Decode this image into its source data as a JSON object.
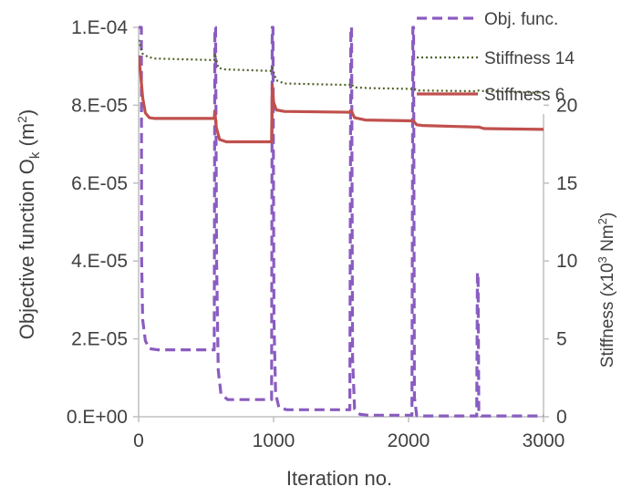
{
  "colors": {
    "objective": "#8a5cc0",
    "stiffness14": "#4f6228",
    "stiffness6": "#c0504d",
    "axis": "#bfbfbf",
    "text": "#404040"
  },
  "chart_data": {
    "type": "line",
    "title": "",
    "xlabel": "Iteration no.",
    "ylabel_left": "Objective function O",
    "ylabel_left_sub": "k",
    "ylabel_left_unit_open": " (m",
    "ylabel_left_unit_sup": "2",
    "ylabel_left_unit_close": ")",
    "ylabel_right": "Stiffness (x10",
    "ylabel_right_sup": "3",
    "ylabel_right_mid": " Nm",
    "ylabel_right_sup2": "2",
    "ylabel_right_close": ")",
    "xlim": [
      0,
      3000
    ],
    "ylim_left": [
      0,
      0.0001
    ],
    "ylim_right": [
      0,
      25
    ],
    "x_ticks": [
      0,
      1000,
      2000,
      3000
    ],
    "x_tick_labels": [
      "0",
      "1000",
      "2000",
      "3000"
    ],
    "y_left_ticks": [
      0,
      2e-05,
      4e-05,
      6e-05,
      8e-05,
      0.0001
    ],
    "y_left_tick_labels": [
      "0.E+00",
      "2.E-05",
      "4.E-05",
      "6.E-05",
      "8.E-05",
      "1.E-04"
    ],
    "y_right_ticks": [
      0,
      5,
      10,
      15,
      20
    ],
    "y_right_tick_labels": [
      "0",
      "5",
      "10",
      "15",
      "20"
    ],
    "grid": false,
    "legend_position": "top-right",
    "series": [
      {
        "name": "Obj. func.",
        "axis": "left",
        "style": "dashed",
        "points": [
          [
            0,
            0.0001
          ],
          [
            20,
            0.0001
          ],
          [
            22,
            4e-05
          ],
          [
            30,
            2.5e-05
          ],
          [
            50,
            1.95e-05
          ],
          [
            80,
            1.75e-05
          ],
          [
            140,
            1.72e-05
          ],
          [
            560,
            1.72e-05
          ],
          [
            565,
            0.0001
          ],
          [
            570,
            0.0001
          ],
          [
            578,
            4e-05
          ],
          [
            590,
            1.2e-05
          ],
          [
            610,
            5.8e-06
          ],
          [
            660,
            4.4e-06
          ],
          [
            985,
            4.4e-06
          ],
          [
            990,
            0.0001
          ],
          [
            995,
            0.0001
          ],
          [
            1003,
            2.5e-05
          ],
          [
            1015,
            6e-06
          ],
          [
            1040,
            2.3e-06
          ],
          [
            1100,
            1.8e-06
          ],
          [
            1565,
            1.8e-06
          ],
          [
            1572,
            0.0001
          ],
          [
            1578,
            0.0001
          ],
          [
            1585,
            1.5e-05
          ],
          [
            1600,
            2e-06
          ],
          [
            1640,
            6e-07
          ],
          [
            1700,
            4e-07
          ],
          [
            2025,
            4e-07
          ],
          [
            2032,
            0.0001
          ],
          [
            2037,
            0.0001
          ],
          [
            2043,
            5e-06
          ],
          [
            2060,
            3e-07
          ],
          [
            2100,
            2e-07
          ],
          [
            2505,
            2e-07
          ],
          [
            2510,
            3.7e-05
          ],
          [
            2515,
            3.7e-05
          ],
          [
            2520,
            1e-06
          ],
          [
            2540,
            2e-07
          ],
          [
            3000,
            2e-07
          ]
        ]
      },
      {
        "name": "Stiffness 14",
        "axis": "right",
        "style": "dotted",
        "points": [
          [
            0,
            24.2
          ],
          [
            30,
            23.3
          ],
          [
            70,
            23.1
          ],
          [
            120,
            23.0
          ],
          [
            560,
            22.9
          ],
          [
            565,
            23.3
          ],
          [
            590,
            22.4
          ],
          [
            640,
            22.3
          ],
          [
            985,
            22.2
          ],
          [
            990,
            22.4
          ],
          [
            1020,
            21.6
          ],
          [
            1080,
            21.4
          ],
          [
            1560,
            21.3
          ],
          [
            1570,
            21.4
          ],
          [
            1600,
            21.15
          ],
          [
            1700,
            21.1
          ],
          [
            2025,
            21.05
          ],
          [
            2035,
            21.1
          ],
          [
            2060,
            20.95
          ],
          [
            2500,
            20.9
          ],
          [
            2520,
            20.95
          ],
          [
            2560,
            20.9
          ],
          [
            3000,
            20.8
          ]
        ]
      },
      {
        "name": "Stiffness 6",
        "axis": "right",
        "style": "solid",
        "points": [
          [
            0,
            23.2
          ],
          [
            15,
            22.0
          ],
          [
            30,
            20.5
          ],
          [
            50,
            19.5
          ],
          [
            80,
            19.2
          ],
          [
            120,
            19.15
          ],
          [
            560,
            19.15
          ],
          [
            565,
            19.6
          ],
          [
            575,
            18.6
          ],
          [
            600,
            17.8
          ],
          [
            650,
            17.65
          ],
          [
            985,
            17.65
          ],
          [
            990,
            21.3
          ],
          [
            1000,
            20.2
          ],
          [
            1020,
            19.7
          ],
          [
            1080,
            19.6
          ],
          [
            1565,
            19.55
          ],
          [
            1575,
            19.65
          ],
          [
            1600,
            19.2
          ],
          [
            1680,
            19.05
          ],
          [
            2025,
            19.0
          ],
          [
            2035,
            19.0
          ],
          [
            2060,
            18.75
          ],
          [
            2100,
            18.7
          ],
          [
            2500,
            18.6
          ],
          [
            2520,
            18.6
          ],
          [
            2560,
            18.5
          ],
          [
            3000,
            18.45
          ]
        ]
      }
    ]
  }
}
